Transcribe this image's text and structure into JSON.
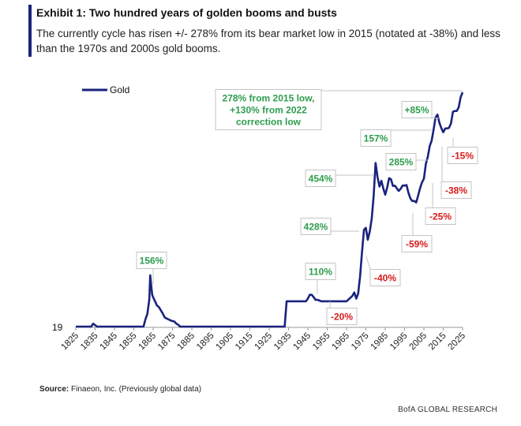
{
  "header": {
    "title": "Exhibit 1: Two hundred years of golden booms and busts",
    "subtitle": "The currently cycle has risen +/- 278% from its bear market low in 2015 (notated at -38%) and less than the 1970s and 2000s gold booms."
  },
  "footer": {
    "source_label": "Source:",
    "source_text": "Finaeon, Inc. (Previously global data)",
    "brand": "BofA GLOBAL RESEARCH"
  },
  "colors": {
    "line": "#1a237e",
    "gain": "#2e9d4d",
    "loss": "#d81b1b",
    "box_border": "#c4c4c4",
    "title_bar": "#1a237e"
  },
  "chart_data": {
    "type": "line",
    "title": "",
    "xlabel": "",
    "ylabel": "",
    "y_scale": "log",
    "y_tick_label": "19",
    "legend": {
      "position": "top-left",
      "entries": [
        "Gold"
      ]
    },
    "grid": false,
    "xlim": [
      1825,
      2025
    ],
    "x_ticks": [
      1825,
      1835,
      1845,
      1855,
      1865,
      1875,
      1885,
      1895,
      1905,
      1915,
      1925,
      1935,
      1945,
      1955,
      1965,
      1975,
      1985,
      1995,
      2005,
      2015,
      2025
    ],
    "series": [
      {
        "name": "Gold",
        "x": [
          1825,
          1833,
          1834,
          1836,
          1837,
          1860,
          1861,
          1862,
          1863,
          1863.5,
          1864,
          1864.5,
          1865,
          1866,
          1867,
          1868,
          1869,
          1870,
          1871,
          1872,
          1873,
          1874,
          1876,
          1877,
          1878,
          1879,
          1880,
          1933,
          1934,
          1935,
          1944,
          1945,
          1946,
          1947,
          1948,
          1949,
          1950,
          1952,
          1955,
          1960,
          1965,
          1968,
          1969,
          1970,
          1971,
          1972,
          1973,
          1974,
          1975,
          1976,
          1977,
          1978,
          1979,
          1980,
          1981,
          1982,
          1983,
          1984,
          1985,
          1986,
          1987,
          1988,
          1989,
          1990,
          1991,
          1992,
          1993,
          1994,
          1995,
          1996,
          1997,
          1998,
          1999,
          2000,
          2001,
          2002,
          2003,
          2004,
          2005,
          2006,
          2007,
          2008,
          2009,
          2010,
          2011,
          2012,
          2013,
          2014,
          2015,
          2016,
          2017,
          2018,
          2019,
          2020,
          2021,
          2022,
          2023,
          2024,
          2025
        ],
        "y": [
          20.7,
          20.7,
          22,
          20.7,
          20.7,
          20.7,
          24,
          27,
          36,
          60,
          48,
          40,
          38,
          35,
          32,
          31,
          29,
          27,
          25,
          24.5,
          24,
          23.5,
          23,
          22,
          21.5,
          20.7,
          20.7,
          20.7,
          35,
          35,
          35,
          37,
          40,
          40,
          38,
          36,
          36,
          35,
          35,
          35,
          35,
          39,
          42,
          37,
          41,
          58,
          97,
          154,
          160,
          125,
          148,
          193,
          307,
          613,
          460,
          376,
          424,
          361,
          318,
          368,
          447,
          437,
          381,
          383,
          362,
          344,
          360,
          384,
          384,
          388,
          331,
          294,
          279,
          279,
          271,
          310,
          363,
          409,
          444,
          603,
          695,
          872,
          972,
          1225,
          1571,
          1669,
          1411,
          1266,
          1160,
          1251,
          1257,
          1268,
          1393,
          1770,
          1799,
          1800,
          1943,
          2386,
          2650
        ]
      }
    ],
    "annotations": [
      {
        "text": "156%",
        "kind": "gain"
      },
      {
        "text": "110%",
        "kind": "gain"
      },
      {
        "text": "428%",
        "kind": "gain"
      },
      {
        "text": "454%",
        "kind": "gain"
      },
      {
        "text": "285%",
        "kind": "gain"
      },
      {
        "text": "157%",
        "kind": "gain"
      },
      {
        "text": "+85%",
        "kind": "gain"
      },
      {
        "text": "278%  from 2015 low, +130% from 2022 correction low",
        "kind": "gain"
      },
      {
        "text": "-20%",
        "kind": "loss"
      },
      {
        "text": "-40%",
        "kind": "loss"
      },
      {
        "text": "-59%",
        "kind": "loss"
      },
      {
        "text": "-25%",
        "kind": "loss"
      },
      {
        "text": "-38%",
        "kind": "loss"
      },
      {
        "text": "-15%",
        "kind": "loss"
      }
    ]
  }
}
